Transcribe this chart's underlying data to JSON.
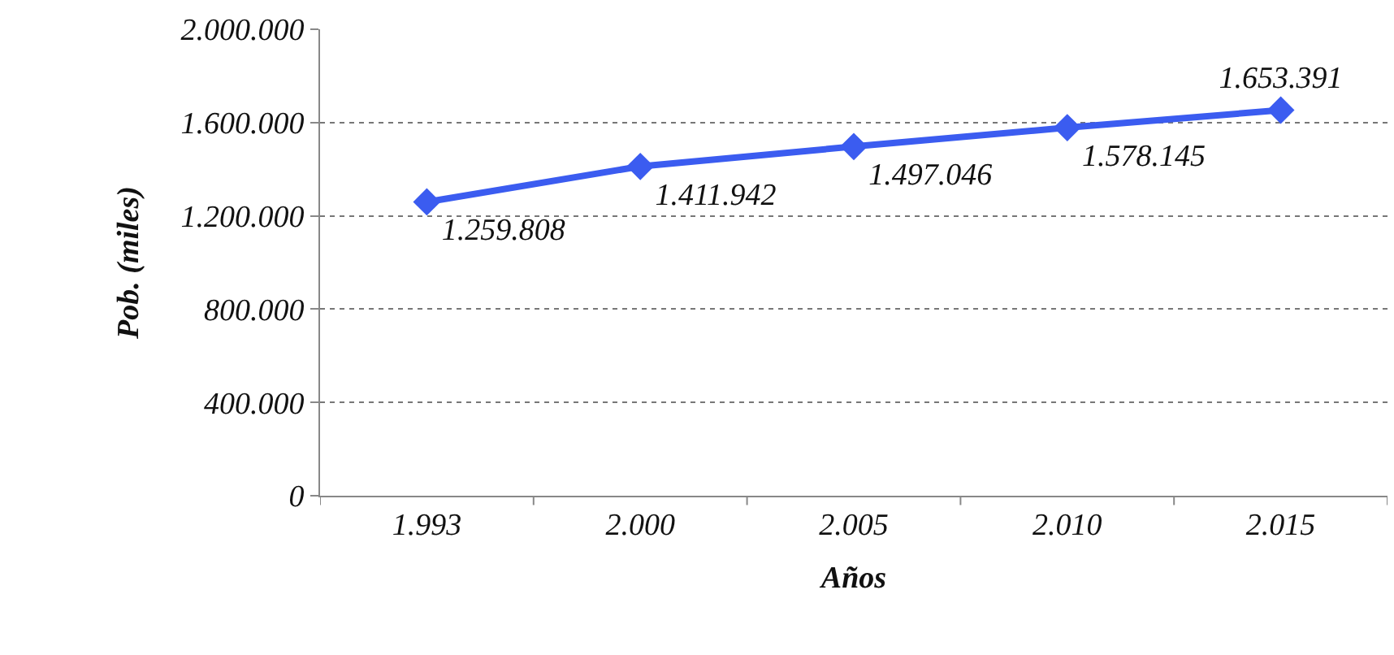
{
  "chart_data": {
    "type": "line",
    "xlabel": "Años",
    "ylabel": "Pob. (miles)",
    "categories": [
      "1.993",
      "2.000",
      "2.005",
      "2.010",
      "2.015"
    ],
    "series": [
      {
        "color": "#3b5cf0",
        "values": [
          1259808,
          1411942,
          1497046,
          1578145,
          1653391
        ],
        "value_labels": [
          "1.259.808",
          "1.411.942",
          "1.497.046",
          "1.578.145",
          "1.653.391"
        ]
      }
    ],
    "ylim": [
      0,
      2000000
    ],
    "yticks": [
      0,
      {
        "value": 400000,
        "label": "400.000"
      },
      {
        "value": 800000,
        "label": "800.000"
      },
      {
        "value": 1200000,
        "label": "1.200.000"
      },
      {
        "value": 1600000,
        "label": "1.600.000"
      },
      {
        "value": 2000000,
        "label": "2.000.000"
      }
    ],
    "grid": "y",
    "legend": false,
    "marker": "diamond",
    "line_style": "solid"
  }
}
